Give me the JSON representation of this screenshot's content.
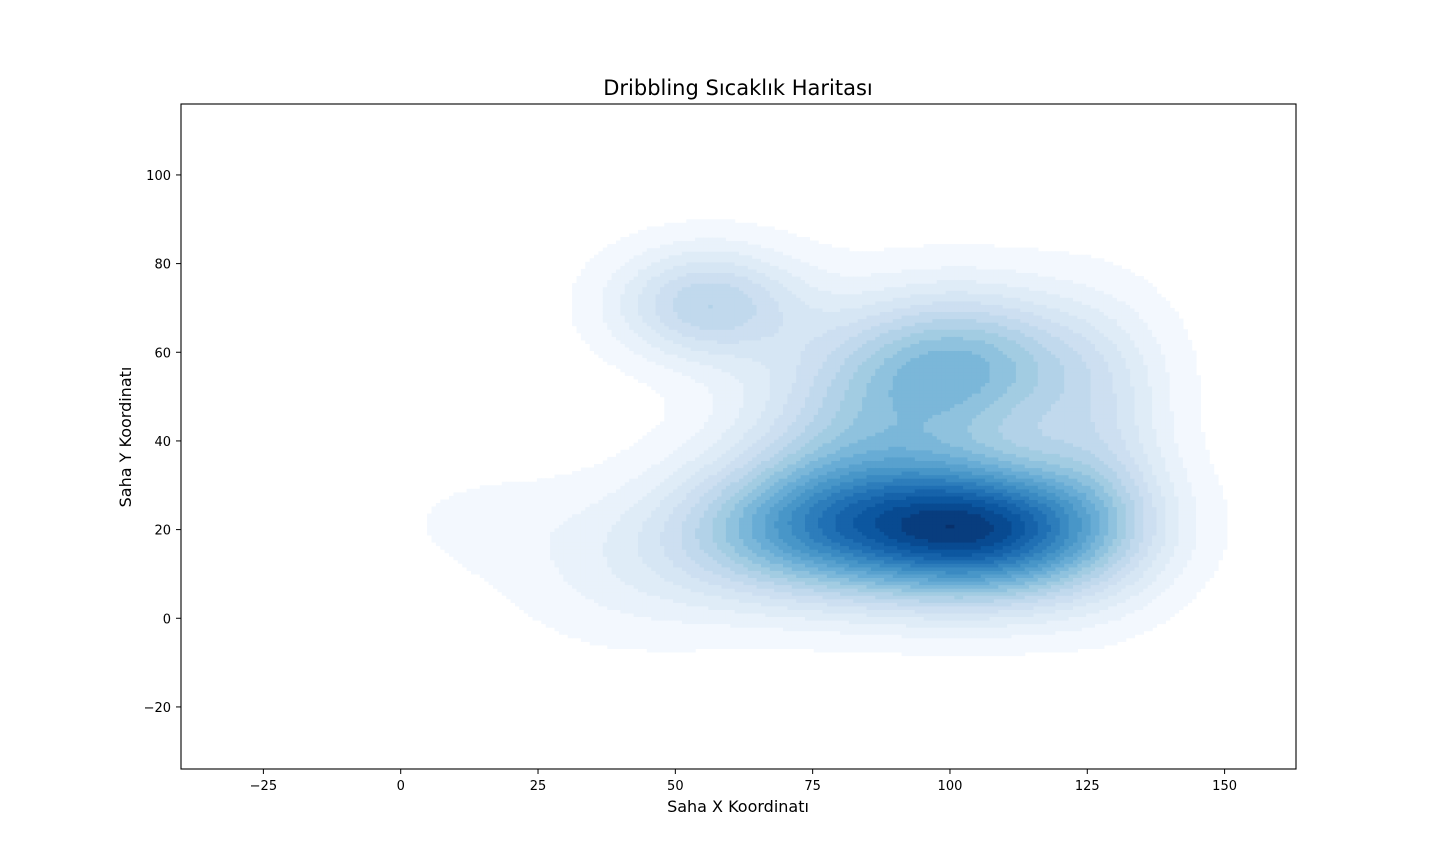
{
  "chart_data": {
    "type": "heatmap",
    "subtype": "kde-density-filled-contours",
    "title": "Dribbling Sıcaklık Haritası",
    "xlabel": "Saha X Koordinatı",
    "ylabel": "Saha Y Koordinatı",
    "xlim": [
      -40,
      163
    ],
    "ylim": [
      -34,
      116
    ],
    "xticks": [
      -25,
      0,
      25,
      50,
      75,
      100,
      125,
      150
    ],
    "yticks": [
      -20,
      0,
      20,
      40,
      60,
      80,
      100
    ],
    "xtick_labels": [
      "−25",
      "0",
      "25",
      "50",
      "75",
      "100",
      "125",
      "150"
    ],
    "ytick_labels": [
      "−20",
      "0",
      "20",
      "40",
      "60",
      "80",
      "100"
    ],
    "colormap": "Blues",
    "grid": false,
    "density_hotspots": [
      {
        "x": 107,
        "y": 20,
        "weight": 1.0,
        "sx": 17,
        "sy": 11
      },
      {
        "x": 75,
        "y": 20,
        "weight": 0.62,
        "sx": 18,
        "sy": 11
      },
      {
        "x": 102,
        "y": 57,
        "weight": 0.55,
        "sx": 17,
        "sy": 12
      },
      {
        "x": 56,
        "y": 71,
        "weight": 0.38,
        "sx": 12,
        "sy": 9
      },
      {
        "x": 82,
        "y": 40,
        "weight": 0.28,
        "sx": 15,
        "sy": 14
      },
      {
        "x": 15,
        "y": 22,
        "weight": 0.05,
        "sx": 14,
        "sy": 9
      },
      {
        "x": 42,
        "y": 10,
        "weight": 0.1,
        "sx": 16,
        "sy": 12
      },
      {
        "x": 128,
        "y": 38,
        "weight": 0.18,
        "sx": 9,
        "sy": 20
      }
    ]
  }
}
